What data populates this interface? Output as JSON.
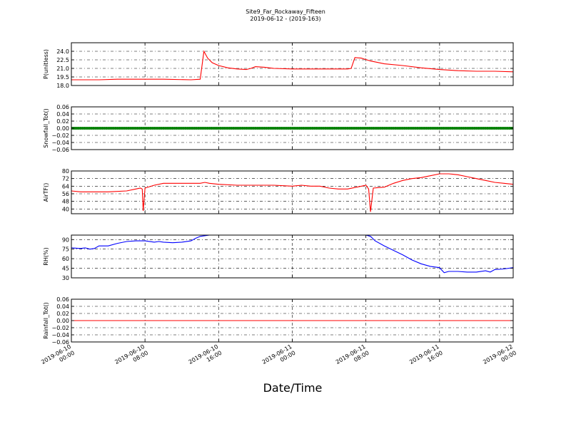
{
  "figure": {
    "title": "Site9_Far_Rockaway_Fifteen",
    "subtitle": "2019-06-12 - (2019-163)",
    "xlabel": "Date/Time",
    "x_ticks": [
      {
        "t": 0,
        "l1": "2019-06-10",
        "l2": "00:00"
      },
      {
        "t": 8,
        "l1": "2019-06-10",
        "l2": "08:00"
      },
      {
        "t": 16,
        "l1": "2019-06-10",
        "l2": "16:00"
      },
      {
        "t": 24,
        "l1": "2019-06-11",
        "l2": "00:00"
      },
      {
        "t": 32,
        "l1": "2019-06-11",
        "l2": "08:00"
      },
      {
        "t": 40,
        "l1": "2019-06-11",
        "l2": "16:00"
      },
      {
        "t": 48,
        "l1": "2019-06-12",
        "l2": "00:00"
      }
    ]
  },
  "chart_data": [
    {
      "type": "line",
      "ylabel": "P(unitless)",
      "color": "#ff0000",
      "ylim": [
        18.0,
        25.5
      ],
      "yticks": [
        18.0,
        19.5,
        21.0,
        22.5,
        24.0
      ],
      "ytick_labels": [
        "18.0",
        "19.5",
        "21.0",
        "22.5",
        "24.0"
      ],
      "xlim": [
        "2019-06-10 00:00",
        "2019-06-12 00:00"
      ],
      "grid": true,
      "points": [
        [
          0,
          19.0
        ],
        [
          3,
          19.0
        ],
        [
          5,
          19.1
        ],
        [
          8,
          19.1
        ],
        [
          10,
          19.1
        ],
        [
          13,
          19.0
        ],
        [
          14,
          19.1
        ],
        [
          14.4,
          24.0
        ],
        [
          14.8,
          22.8
        ],
        [
          15.3,
          22.0
        ],
        [
          16,
          21.5
        ],
        [
          17,
          21.1
        ],
        [
          18,
          20.9
        ],
        [
          19,
          20.8
        ],
        [
          19.5,
          21.0
        ],
        [
          20,
          21.3
        ],
        [
          21,
          21.2
        ],
        [
          22,
          21.0
        ],
        [
          24,
          20.9
        ],
        [
          26,
          20.9
        ],
        [
          28,
          20.9
        ],
        [
          30,
          20.9
        ],
        [
          30.4,
          21.0
        ],
        [
          30.8,
          22.9
        ],
        [
          31.5,
          22.8
        ],
        [
          32.5,
          22.3
        ],
        [
          34,
          21.8
        ],
        [
          36,
          21.5
        ],
        [
          38,
          21.1
        ],
        [
          40,
          20.8
        ],
        [
          42,
          20.6
        ],
        [
          44,
          20.5
        ],
        [
          46,
          20.5
        ],
        [
          48,
          20.4
        ]
      ]
    },
    {
      "type": "scatter",
      "ylabel": "Snowfall_Tot()",
      "color": "#008000",
      "ylim": [
        -0.06,
        0.06
      ],
      "yticks": [
        -0.06,
        -0.04,
        -0.02,
        0.0,
        0.02,
        0.04,
        0.06
      ],
      "ytick_labels": [
        "−0.06",
        "−0.04",
        "−0.02",
        "0.00",
        "0.02",
        "0.04",
        "0.06"
      ],
      "grid": true,
      "constant_value": 0.0,
      "x_range": [
        0,
        48
      ]
    },
    {
      "type": "line",
      "ylabel": "AirTF()",
      "color": "#ff0000",
      "ylim": [
        35,
        80
      ],
      "yticks": [
        40,
        48,
        56,
        64,
        72,
        80
      ],
      "ytick_labels": [
        "40",
        "48",
        "56",
        "64",
        "72",
        "80"
      ],
      "grid": true,
      "points": [
        [
          0,
          59
        ],
        [
          1,
          58
        ],
        [
          3,
          58
        ],
        [
          4,
          58
        ],
        [
          6,
          59
        ],
        [
          7,
          61
        ],
        [
          7.5,
          62
        ],
        [
          7.7,
          61
        ],
        [
          7.8,
          38
        ],
        [
          8,
          62
        ],
        [
          9,
          65
        ],
        [
          10,
          67
        ],
        [
          11,
          67
        ],
        [
          12,
          67
        ],
        [
          13,
          67
        ],
        [
          14,
          67
        ],
        [
          14.5,
          68
        ],
        [
          15,
          67
        ],
        [
          16,
          66
        ],
        [
          18,
          65
        ],
        [
          20,
          65
        ],
        [
          22,
          65
        ],
        [
          24,
          64
        ],
        [
          25,
          65
        ],
        [
          26,
          64
        ],
        [
          27,
          64
        ],
        [
          28,
          62
        ],
        [
          29,
          61
        ],
        [
          30,
          61
        ],
        [
          31,
          63
        ],
        [
          32,
          65
        ],
        [
          32.3,
          61
        ],
        [
          32.5,
          37
        ],
        [
          32.8,
          62
        ],
        [
          34,
          63
        ],
        [
          34.5,
          65
        ],
        [
          35,
          67
        ],
        [
          36,
          70
        ],
        [
          37,
          72
        ],
        [
          38,
          73
        ],
        [
          39,
          75
        ],
        [
          40,
          77
        ],
        [
          41,
          77
        ],
        [
          42,
          76
        ],
        [
          43,
          74
        ],
        [
          44,
          72
        ],
        [
          45,
          70
        ],
        [
          46,
          68
        ],
        [
          47,
          67
        ],
        [
          48,
          66
        ]
      ]
    },
    {
      "type": "line",
      "ylabel": "RH(%)",
      "color": "#0000ff",
      "ylim": [
        30,
        97
      ],
      "yticks": [
        30,
        45,
        60,
        75,
        90
      ],
      "ytick_labels": [
        "30",
        "45",
        "60",
        "75",
        "90"
      ],
      "grid": true,
      "segments": [
        [
          [
            0,
            77
          ],
          [
            1,
            76
          ],
          [
            1.5,
            77
          ],
          [
            2,
            75
          ],
          [
            2.5,
            76
          ],
          [
            3,
            80
          ],
          [
            4,
            80
          ],
          [
            5,
            84
          ],
          [
            6,
            87
          ],
          [
            7,
            88
          ],
          [
            8,
            88
          ],
          [
            9,
            86
          ],
          [
            9.5,
            87
          ],
          [
            10,
            86
          ],
          [
            11,
            85
          ],
          [
            12,
            86
          ],
          [
            13,
            88
          ],
          [
            13.5,
            92
          ],
          [
            14,
            95
          ],
          [
            15,
            97
          ],
          [
            16,
            97
          ]
        ],
        [
          [
            32,
            97
          ],
          [
            32.5,
            95
          ],
          [
            33,
            88
          ],
          [
            34,
            80
          ],
          [
            35,
            73
          ],
          [
            36,
            66
          ],
          [
            37,
            58
          ],
          [
            38,
            52
          ],
          [
            39,
            48
          ],
          [
            40,
            46
          ],
          [
            40.5,
            38
          ],
          [
            41,
            40
          ],
          [
            42,
            40
          ],
          [
            43,
            39
          ],
          [
            44,
            39
          ],
          [
            45,
            41
          ],
          [
            45.5,
            39
          ],
          [
            46,
            43
          ],
          [
            47,
            44
          ],
          [
            48,
            46
          ]
        ]
      ]
    },
    {
      "type": "line",
      "ylabel": "Rainfall_Tot()",
      "color": "#ff0000",
      "ylim": [
        -0.06,
        0.06
      ],
      "yticks": [
        -0.06,
        -0.04,
        -0.02,
        0.0,
        0.02,
        0.04,
        0.06
      ],
      "ytick_labels": [
        "−0.06",
        "−0.04",
        "−0.02",
        "0.00",
        "0.02",
        "0.04",
        "0.06"
      ],
      "grid": true,
      "points": [
        [
          0,
          0.0
        ],
        [
          48,
          0.0
        ]
      ]
    }
  ]
}
